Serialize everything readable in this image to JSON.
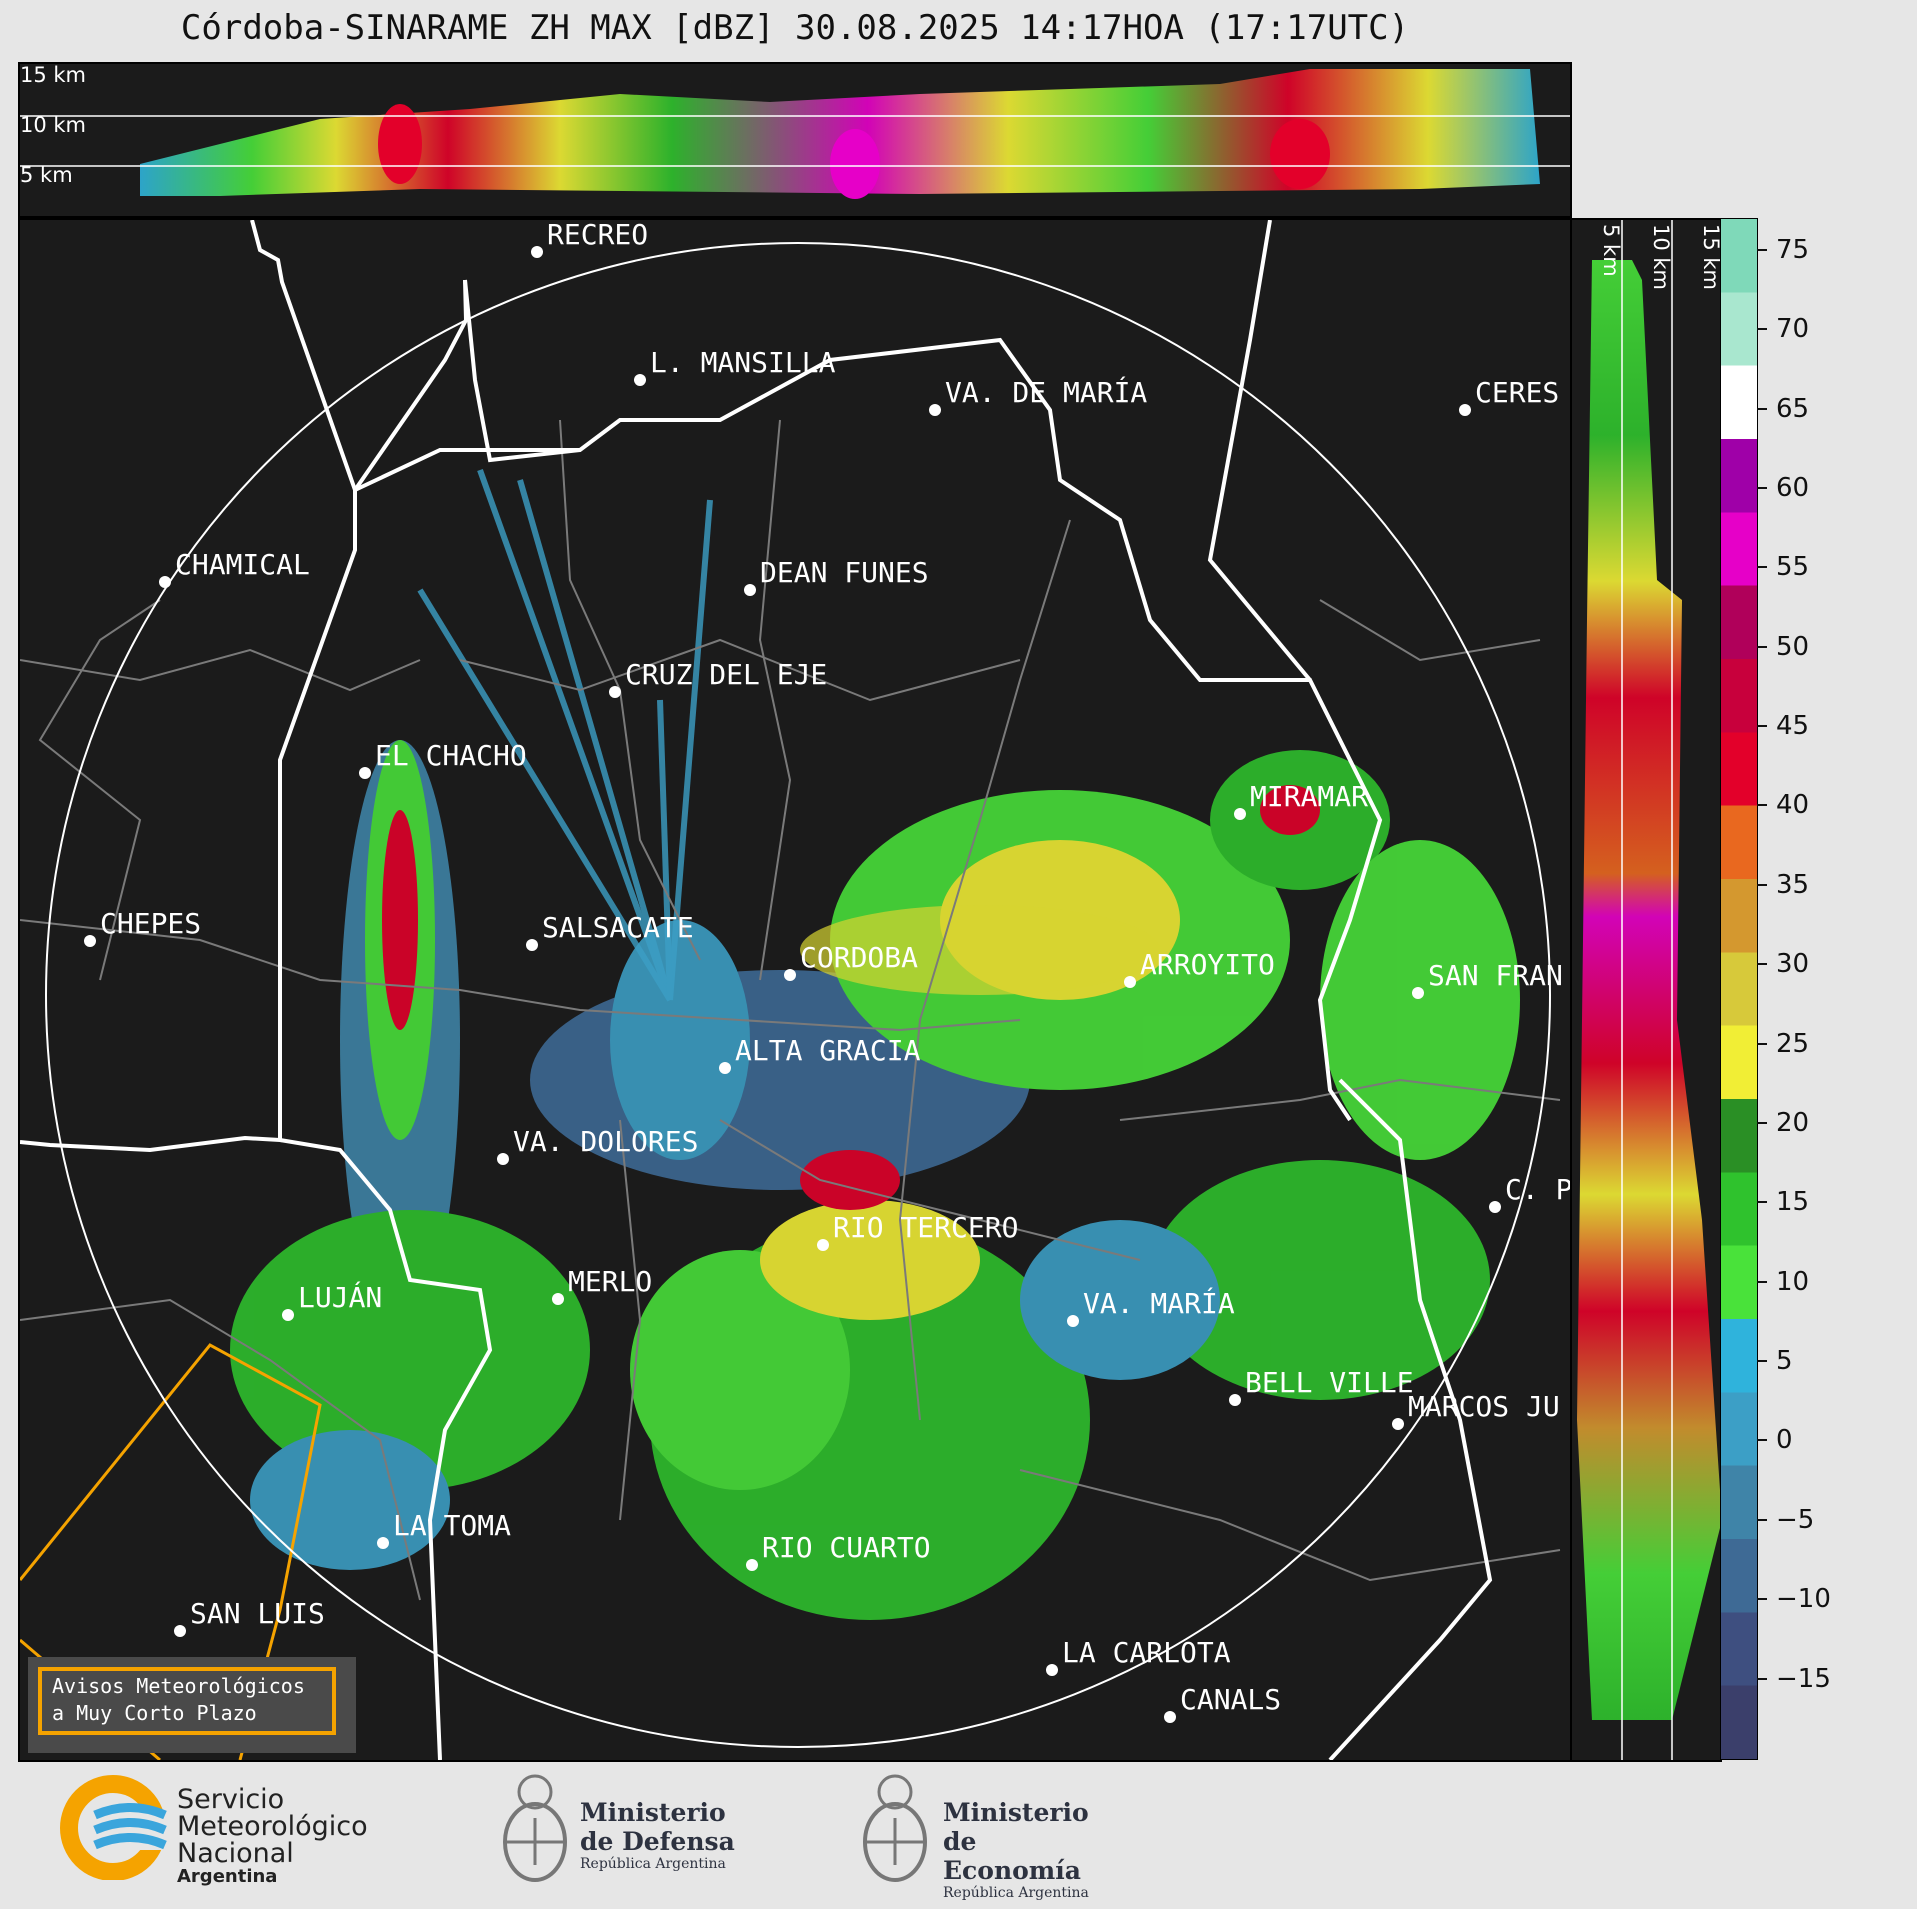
{
  "title": "Córdoba-SINARAME ZH MAX [dBZ] 30.08.2025 14:17HOA (17:17UTC)",
  "top_panel": {
    "height_labels": [
      "15 km",
      "10 km",
      "5 km"
    ]
  },
  "side_panel": {
    "height_labels": [
      "5 km",
      "10 km",
      "15 km"
    ]
  },
  "cities": [
    {
      "name": "RECREO"
    },
    {
      "name": "L. MANSILLA"
    },
    {
      "name": "VA. DE MARÍA"
    },
    {
      "name": "CERES"
    },
    {
      "name": "CHAMICAL"
    },
    {
      "name": "DEAN FUNES"
    },
    {
      "name": "CRUZ DEL EJE"
    },
    {
      "name": "EL CHACHO"
    },
    {
      "name": "MIRAMAR"
    },
    {
      "name": "CHEPES"
    },
    {
      "name": "SALSACATE"
    },
    {
      "name": "CORDOBA"
    },
    {
      "name": "ARROYITO"
    },
    {
      "name": "SAN FRAN"
    },
    {
      "name": "ALTA GRACIA"
    },
    {
      "name": "VA. DOLORES"
    },
    {
      "name": "C. P"
    },
    {
      "name": "RIO TERCERO"
    },
    {
      "name": "LUJÁN"
    },
    {
      "name": "MERLO"
    },
    {
      "name": "VA. MARÍA"
    },
    {
      "name": "BELL VILLE"
    },
    {
      "name": "MARCOS JU"
    },
    {
      "name": "LA TOMA"
    },
    {
      "name": "RIO CUARTO"
    },
    {
      "name": "SAN LUIS"
    },
    {
      "name": "LA CARLOTA"
    },
    {
      "name": "CANALS"
    }
  ],
  "colorbar": {
    "unit": "dBZ",
    "range": [
      -20,
      77
    ],
    "ticks": [
      "75",
      "70",
      "65",
      "60",
      "55",
      "50",
      "45",
      "40",
      "35",
      "30",
      "25",
      "20",
      "15",
      "10",
      "5",
      "0",
      "−5",
      "−10",
      "−15"
    ],
    "colors": [
      "#3b3f6b",
      "#3e4f80",
      "#3e6a95",
      "#3f84a8",
      "#3c9fc6",
      "#2fb3dc",
      "#49e23a",
      "#2fc22d",
      "#2a8f25",
      "#f1ee35",
      "#d7c93a",
      "#d4982f",
      "#e9681f",
      "#e3002a",
      "#c8003c",
      "#b0005a",
      "#e600c8",
      "#9f00a8",
      "#ffffff",
      "#a9e7cf",
      "#7fd9b9"
    ]
  },
  "aviso": {
    "line1": "Avisos Meteorológicos",
    "line2": "a Muy Corto Plazo"
  },
  "logos": {
    "smn": {
      "line1": "Servicio",
      "line2": "Meteorológico",
      "line3": "Nacional",
      "line4": "Argentina"
    },
    "defensa": {
      "line1": "Ministerio",
      "line2": "de Defensa",
      "line3": "República Argentina"
    },
    "economia": {
      "line1": "Ministerio",
      "line2": "de Economía",
      "line3": "República Argentina"
    }
  }
}
